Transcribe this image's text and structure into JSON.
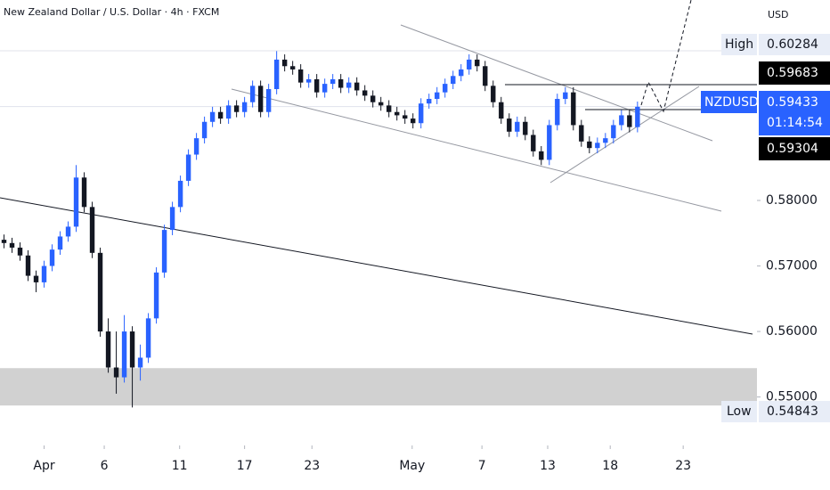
{
  "chart_data": {
    "type": "candlestick",
    "title": "New Zealand Dollar / U.S. Dollar · 4h · FXCM",
    "currency": "USD",
    "symbol": "NZDUSD",
    "countdown": "01:14:54",
    "up_color": "#2962ff",
    "down_color": "#131722",
    "open": [
      0.574,
      0.5735,
      0.5728,
      0.5716,
      0.5685,
      0.5675,
      0.57,
      0.5725,
      0.5745,
      0.576,
      0.5835,
      0.579,
      0.572,
      0.56,
      0.5545,
      0.553,
      0.56,
      0.5545,
      0.556,
      0.562,
      0.569,
      0.5755,
      0.579,
      0.583,
      0.587,
      0.5895,
      0.592,
      0.5935,
      0.5925,
      0.5945,
      0.5935,
      0.595,
      0.5975,
      0.5935,
      0.597,
      0.6015,
      0.6005,
      0.6,
      0.598,
      0.5985,
      0.5965,
      0.5978,
      0.5985,
      0.5972,
      0.598,
      0.5968,
      0.596,
      0.595,
      0.5945,
      0.5935,
      0.593,
      0.5925,
      0.5918,
      0.5948,
      0.5955,
      0.5965,
      0.5978,
      0.599,
      0.6,
      0.6015,
      0.6005,
      0.5975,
      0.595,
      0.5925,
      0.5905,
      0.592,
      0.59,
      0.5875,
      0.5862,
      0.5915,
      0.5955,
      0.5965,
      0.5915,
      0.589,
      0.588,
      0.5888,
      0.5895,
      0.5915,
      0.593,
      0.5912
    ],
    "high": [
      0.5748,
      0.5743,
      0.5736,
      0.5724,
      0.5693,
      0.5708,
      0.5733,
      0.5753,
      0.5768,
      0.5854,
      0.5843,
      0.5798,
      0.5728,
      0.562,
      0.56,
      0.5625,
      0.5608,
      0.558,
      0.5628,
      0.5698,
      0.5763,
      0.5798,
      0.5838,
      0.5878,
      0.5903,
      0.5928,
      0.5943,
      0.5943,
      0.5953,
      0.5953,
      0.5958,
      0.5983,
      0.5983,
      0.5978,
      0.6028,
      0.6023,
      0.6013,
      0.6008,
      0.5993,
      0.5993,
      0.5986,
      0.5993,
      0.5993,
      0.5988,
      0.5988,
      0.5976,
      0.5968,
      0.5958,
      0.5953,
      0.5943,
      0.5938,
      0.5933,
      0.5956,
      0.5963,
      0.5973,
      0.5986,
      0.5998,
      0.6008,
      0.6023,
      0.6023,
      0.6013,
      0.5983,
      0.5958,
      0.5933,
      0.5928,
      0.5928,
      0.5908,
      0.5883,
      0.5923,
      0.5963,
      0.5973,
      0.5973,
      0.5923,
      0.5898,
      0.5896,
      0.5903,
      0.5923,
      0.5938,
      0.5938,
      0.5951
    ],
    "low": [
      0.5727,
      0.572,
      0.5708,
      0.5677,
      0.566,
      0.5667,
      0.5692,
      0.5717,
      0.5737,
      0.5752,
      0.5782,
      0.5712,
      0.5592,
      0.5537,
      0.5505,
      0.5522,
      0.5484,
      0.5525,
      0.5552,
      0.5612,
      0.5682,
      0.5747,
      0.5782,
      0.5822,
      0.5862,
      0.5887,
      0.5912,
      0.5917,
      0.5917,
      0.5927,
      0.5927,
      0.5942,
      0.5927,
      0.5927,
      0.5962,
      0.5997,
      0.5992,
      0.5972,
      0.5972,
      0.5957,
      0.5957,
      0.597,
      0.5964,
      0.5964,
      0.596,
      0.5952,
      0.5942,
      0.5937,
      0.5927,
      0.5922,
      0.5917,
      0.591,
      0.591,
      0.594,
      0.5947,
      0.5957,
      0.597,
      0.5982,
      0.5992,
      0.5997,
      0.5967,
      0.5942,
      0.5917,
      0.5897,
      0.5897,
      0.5892,
      0.5867,
      0.5854,
      0.5854,
      0.5907,
      0.5947,
      0.5907,
      0.5882,
      0.5872,
      0.5872,
      0.588,
      0.5887,
      0.5907,
      0.5904,
      0.5904
    ],
    "close": [
      0.5735,
      0.5728,
      0.5716,
      0.5685,
      0.5675,
      0.57,
      0.5725,
      0.5745,
      0.576,
      0.5835,
      0.579,
      0.572,
      0.56,
      0.5545,
      0.553,
      0.56,
      0.5545,
      0.556,
      0.562,
      0.569,
      0.5755,
      0.579,
      0.583,
      0.587,
      0.5895,
      0.592,
      0.5935,
      0.5925,
      0.5945,
      0.5935,
      0.595,
      0.5975,
      0.5935,
      0.597,
      0.6015,
      0.6005,
      0.6,
      0.598,
      0.5985,
      0.5965,
      0.5978,
      0.5985,
      0.5972,
      0.598,
      0.5968,
      0.596,
      0.595,
      0.5945,
      0.5935,
      0.593,
      0.5925,
      0.5918,
      0.5948,
      0.5955,
      0.5965,
      0.5978,
      0.599,
      0.6,
      0.6015,
      0.6005,
      0.5975,
      0.595,
      0.5925,
      0.5905,
      0.592,
      0.59,
      0.5875,
      0.5862,
      0.5915,
      0.5955,
      0.5965,
      0.5915,
      0.589,
      0.588,
      0.5888,
      0.5895,
      0.5915,
      0.593,
      0.5912,
      0.5943
    ],
    "xlim": [
      -0.5,
      93.9
    ],
    "ylim": [
      0.5426,
      0.6106
    ],
    "xticks": [
      {
        "value": 5,
        "label": "Apr"
      },
      {
        "value": 12.5,
        "label": "6"
      },
      {
        "value": 21.9,
        "label": "11"
      },
      {
        "value": 30,
        "label": "17"
      },
      {
        "value": 38.4,
        "label": "23"
      },
      {
        "value": 50.9,
        "label": "May"
      },
      {
        "value": 59.6,
        "label": "7"
      },
      {
        "value": 67.8,
        "label": "13"
      },
      {
        "value": 75.6,
        "label": "18"
      },
      {
        "value": 84.7,
        "label": "23"
      }
    ],
    "yticks": [
      {
        "value": 0.55,
        "label": "0.55000"
      },
      {
        "value": 0.56,
        "label": "0.56000"
      },
      {
        "value": 0.57,
        "label": "0.57000"
      },
      {
        "value": 0.58,
        "label": "0.58000"
      }
    ],
    "high_marker": {
      "name": "High",
      "value": 0.60284,
      "label": "0.60284"
    },
    "low_marker": {
      "name": "Low",
      "value": 0.54843,
      "label": "0.54843"
    },
    "price_labels": [
      {
        "value": 0.59683,
        "label": "0.59683"
      },
      {
        "value": 0.59433,
        "label": "0.59433"
      },
      {
        "value": 0.59304,
        "label": "0.59304"
      }
    ],
    "zone": [
      0.5487,
      0.5544
    ]
  }
}
